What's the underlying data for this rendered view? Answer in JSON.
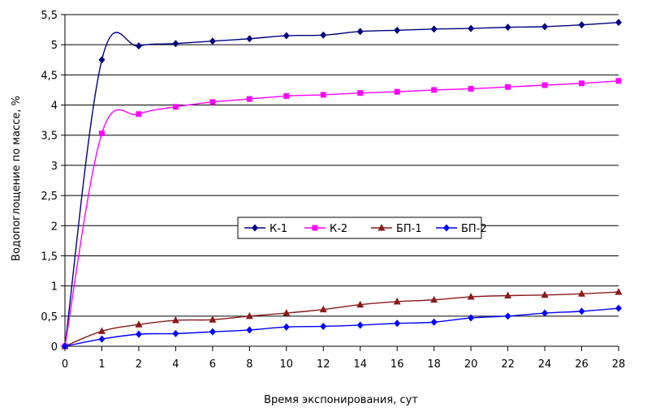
{
  "chart_data": {
    "type": "line",
    "xlabel": "Время экспонирования, сут",
    "ylabel": "Водопоглощение по массе, %",
    "x_ticks": [
      "0",
      "1",
      "2",
      "4",
      "6",
      "8",
      "10",
      "12",
      "14",
      "16",
      "18",
      "20",
      "22",
      "24",
      "26",
      "28"
    ],
    "y_ticks": [
      "0",
      "0,5",
      "1",
      "1,5",
      "2",
      "2,5",
      "3",
      "3,5",
      "4",
      "4,5",
      "5",
      "5,5"
    ],
    "ylim": [
      0,
      5.5
    ],
    "x_scale": "categorical",
    "grid": true,
    "legend_position": "center-right",
    "series": [
      {
        "name": "К-1",
        "color": "#000080",
        "marker": "diamond",
        "values": [
          0,
          4.75,
          4.98,
          5.02,
          5.06,
          5.1,
          5.15,
          5.16,
          5.22,
          5.24,
          5.26,
          5.27,
          5.29,
          5.3,
          5.33,
          5.37
        ]
      },
      {
        "name": "К-2",
        "color": "#ff00ff",
        "marker": "square",
        "values": [
          0,
          3.53,
          3.85,
          3.97,
          4.05,
          4.1,
          4.15,
          4.17,
          4.2,
          4.22,
          4.25,
          4.27,
          4.3,
          4.33,
          4.36,
          4.4
        ]
      },
      {
        "name": "БП-1",
        "color": "#8b1a1a",
        "marker": "triangle",
        "values": [
          0,
          0.25,
          0.36,
          0.43,
          0.44,
          0.5,
          0.55,
          0.61,
          0.69,
          0.74,
          0.77,
          0.82,
          0.84,
          0.85,
          0.87,
          0.9
        ]
      },
      {
        "name": "БП-2",
        "color": "#0000ff",
        "marker": "diamond",
        "values": [
          0,
          0.12,
          0.2,
          0.21,
          0.24,
          0.27,
          0.32,
          0.33,
          0.35,
          0.38,
          0.4,
          0.47,
          0.5,
          0.55,
          0.58,
          0.63
        ]
      }
    ]
  }
}
